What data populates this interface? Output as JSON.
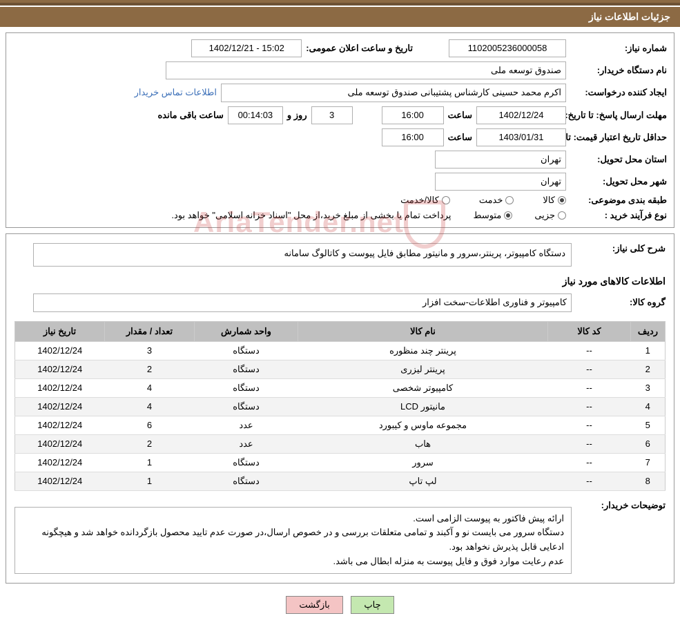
{
  "header": {
    "title": "جزئیات اطلاعات نیاز"
  },
  "info": {
    "need_number_label": "شماره نیاز:",
    "need_number": "1102005236000058",
    "announce_datetime_label": "تاریخ و ساعت اعلان عمومی:",
    "announce_datetime": "1402/12/21 - 15:02",
    "buyer_org_label": "نام دستگاه خریدار:",
    "buyer_org": "صندوق توسعه ملی",
    "requester_label": "ایجاد کننده درخواست:",
    "requester": "اکرم محمد حسینی کارشناس پشتیبانی صندوق توسعه ملی",
    "contact_link": "اطلاعات تماس خریدار",
    "deadline_label": "مهلت ارسال پاسخ:",
    "deadline_prefix": "تا تاریخ:",
    "deadline_date": "1402/12/24",
    "time_label": "ساعت",
    "deadline_time": "16:00",
    "countdown_days": "3",
    "countdown_days_label": "روز و",
    "countdown_time": "00:14:03",
    "countdown_remain_label": "ساعت باقی مانده",
    "validity_label": "حداقل تاریخ اعتبار قیمت:",
    "validity_prefix": "تا تاریخ:",
    "validity_date": "1403/01/31",
    "validity_time": "16:00",
    "delivery_province_label": "استان محل تحویل:",
    "delivery_province": "تهران",
    "delivery_city_label": "شهر محل تحویل:",
    "delivery_city": "تهران",
    "subject_class_label": "طبقه بندی موضوعی:",
    "class_goods": "کالا",
    "class_service": "خدمت",
    "class_goods_service": "کالا/خدمت",
    "purchase_type_label": "نوع فرآیند خرید :",
    "type_partial": "جزیی",
    "type_medium": "متوسط",
    "purchase_note": "پرداخت تمام یا بخشی از مبلغ خرید،از محل \"اسناد خزانه اسلامی\" خواهد بود."
  },
  "need": {
    "desc_label": "شرح کلی نیاز:",
    "desc": "دستگاه کامپیوتر، پرینتر،سرور و مانیتور مطابق فایل پیوست و کاتالوگ سامانه",
    "items_title": "اطلاعات کالاهای مورد نیاز",
    "group_label": "گروه کالا:",
    "group": "کامپیوتر و فناوری اطلاعات-سخت افزار"
  },
  "table": {
    "headers": {
      "row": "ردیف",
      "code": "کد کالا",
      "name": "نام کالا",
      "unit": "واحد شمارش",
      "qty": "تعداد / مقدار",
      "need_date": "تاریخ نیاز"
    },
    "rows": [
      {
        "row": "1",
        "code": "--",
        "name": "پرینتر چند منظوره",
        "unit": "دستگاه",
        "qty": "3",
        "need_date": "1402/12/24"
      },
      {
        "row": "2",
        "code": "--",
        "name": "پرینتر لیزری",
        "unit": "دستگاه",
        "qty": "2",
        "need_date": "1402/12/24"
      },
      {
        "row": "3",
        "code": "--",
        "name": "کامپیوتر شخصی",
        "unit": "دستگاه",
        "qty": "4",
        "need_date": "1402/12/24"
      },
      {
        "row": "4",
        "code": "--",
        "name": "مانیتور LCD",
        "unit": "دستگاه",
        "qty": "4",
        "need_date": "1402/12/24"
      },
      {
        "row": "5",
        "code": "--",
        "name": "مجموعه ماوس و کیبورد",
        "unit": "عدد",
        "qty": "6",
        "need_date": "1402/12/24"
      },
      {
        "row": "6",
        "code": "--",
        "name": "هاب",
        "unit": "عدد",
        "qty": "2",
        "need_date": "1402/12/24"
      },
      {
        "row": "7",
        "code": "--",
        "name": "سرور",
        "unit": "دستگاه",
        "qty": "1",
        "need_date": "1402/12/24"
      },
      {
        "row": "8",
        "code": "--",
        "name": "لپ تاپ",
        "unit": "دستگاه",
        "qty": "1",
        "need_date": "1402/12/24"
      }
    ],
    "col_widths": {
      "row": "50px",
      "code": "120px",
      "name": "auto",
      "unit": "150px",
      "qty": "130px",
      "need_date": "130px"
    }
  },
  "notes": {
    "label": "توضیحات خریدار:",
    "line1": "ارائه پیش فاکتور به پیوست الزامی است.",
    "line2": "دستگاه سرور می بایست نو و آکبند و تمامی متعلقات بررسی و در خصوص ارسال،در صورت عدم تایید محصول بازگردانده خواهد شد و هیچگونه ادعایی قابل پذیرش نخواهد بود.",
    "line3": "عدم رعایت موارد فوق و فایل پیوست به منزله ابطال می باشد."
  },
  "buttons": {
    "print": "چاپ",
    "back": "بازگشت"
  },
  "watermark": "AriaTender.net",
  "colors": {
    "header_bg": "#8c6a44",
    "border": "#999999",
    "field_border": "#b0b0b0",
    "table_header_bg": "#c0c0c0",
    "btn_green": "#c4e8b0",
    "btn_pink": "#f4c4c4",
    "link": "#3b6fb8"
  }
}
